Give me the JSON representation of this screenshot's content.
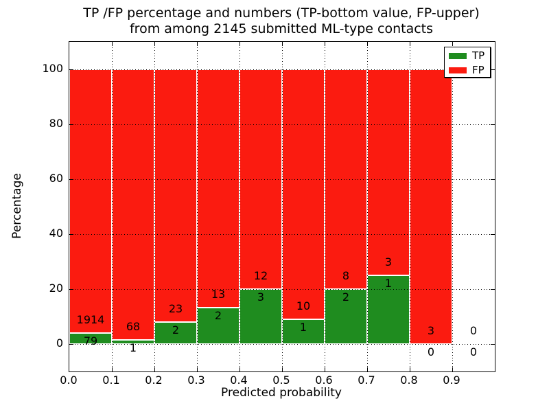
{
  "chart_data": {
    "type": "bar",
    "stacked": true,
    "title_line1": "TP /FP percentage and numbers (TP-bottom value, FP-upper)",
    "title_line2": "from among 2145 submitted ML-type contacts",
    "total_contacts": 2145,
    "xlabel": "Predicted probability",
    "ylabel": "Percentage",
    "xlim": [
      0.0,
      1.0
    ],
    "ylim": [
      -10,
      110
    ],
    "xticks": [
      "0.0",
      "0.1",
      "0.2",
      "0.3",
      "0.4",
      "0.5",
      "0.6",
      "0.7",
      "0.8",
      "0.9"
    ],
    "yticks": [
      0,
      20,
      40,
      60,
      80,
      100
    ],
    "grid": "dotted black, drawn above bars",
    "legend_position": "upper right",
    "legend": [
      {
        "label": "TP",
        "color": "#1f8c1f"
      },
      {
        "label": "FP",
        "color": "#fb1b10"
      }
    ],
    "colors": {
      "tp_green": "#1f8c1f",
      "fp_red": "#fb1b10",
      "bar_edge": "#ffffff",
      "background": "#ffffff",
      "text": "#000000"
    },
    "bins": [
      {
        "x0": 0.0,
        "x1": 0.1,
        "tp": 79,
        "fp": 1914,
        "tp_pct": 3.96
      },
      {
        "x0": 0.1,
        "x1": 0.2,
        "tp": 1,
        "fp": 68,
        "tp_pct": 1.45
      },
      {
        "x0": 0.2,
        "x1": 0.3,
        "tp": 2,
        "fp": 23,
        "tp_pct": 8.0
      },
      {
        "x0": 0.3,
        "x1": 0.4,
        "tp": 2,
        "fp": 13,
        "tp_pct": 13.33
      },
      {
        "x0": 0.4,
        "x1": 0.5,
        "tp": 3,
        "fp": 12,
        "tp_pct": 20.0
      },
      {
        "x0": 0.5,
        "x1": 0.6,
        "tp": 1,
        "fp": 10,
        "tp_pct": 9.09
      },
      {
        "x0": 0.6,
        "x1": 0.7,
        "tp": 2,
        "fp": 8,
        "tp_pct": 20.0
      },
      {
        "x0": 0.7,
        "x1": 0.8,
        "tp": 1,
        "fp": 3,
        "tp_pct": 25.0
      },
      {
        "x0": 0.8,
        "x1": 0.9,
        "tp": 0,
        "fp": 3,
        "tp_pct": 0.0
      },
      {
        "x0": 0.9,
        "x1": 1.0,
        "tp": 0,
        "fp": 0,
        "tp_pct": null
      }
    ]
  }
}
